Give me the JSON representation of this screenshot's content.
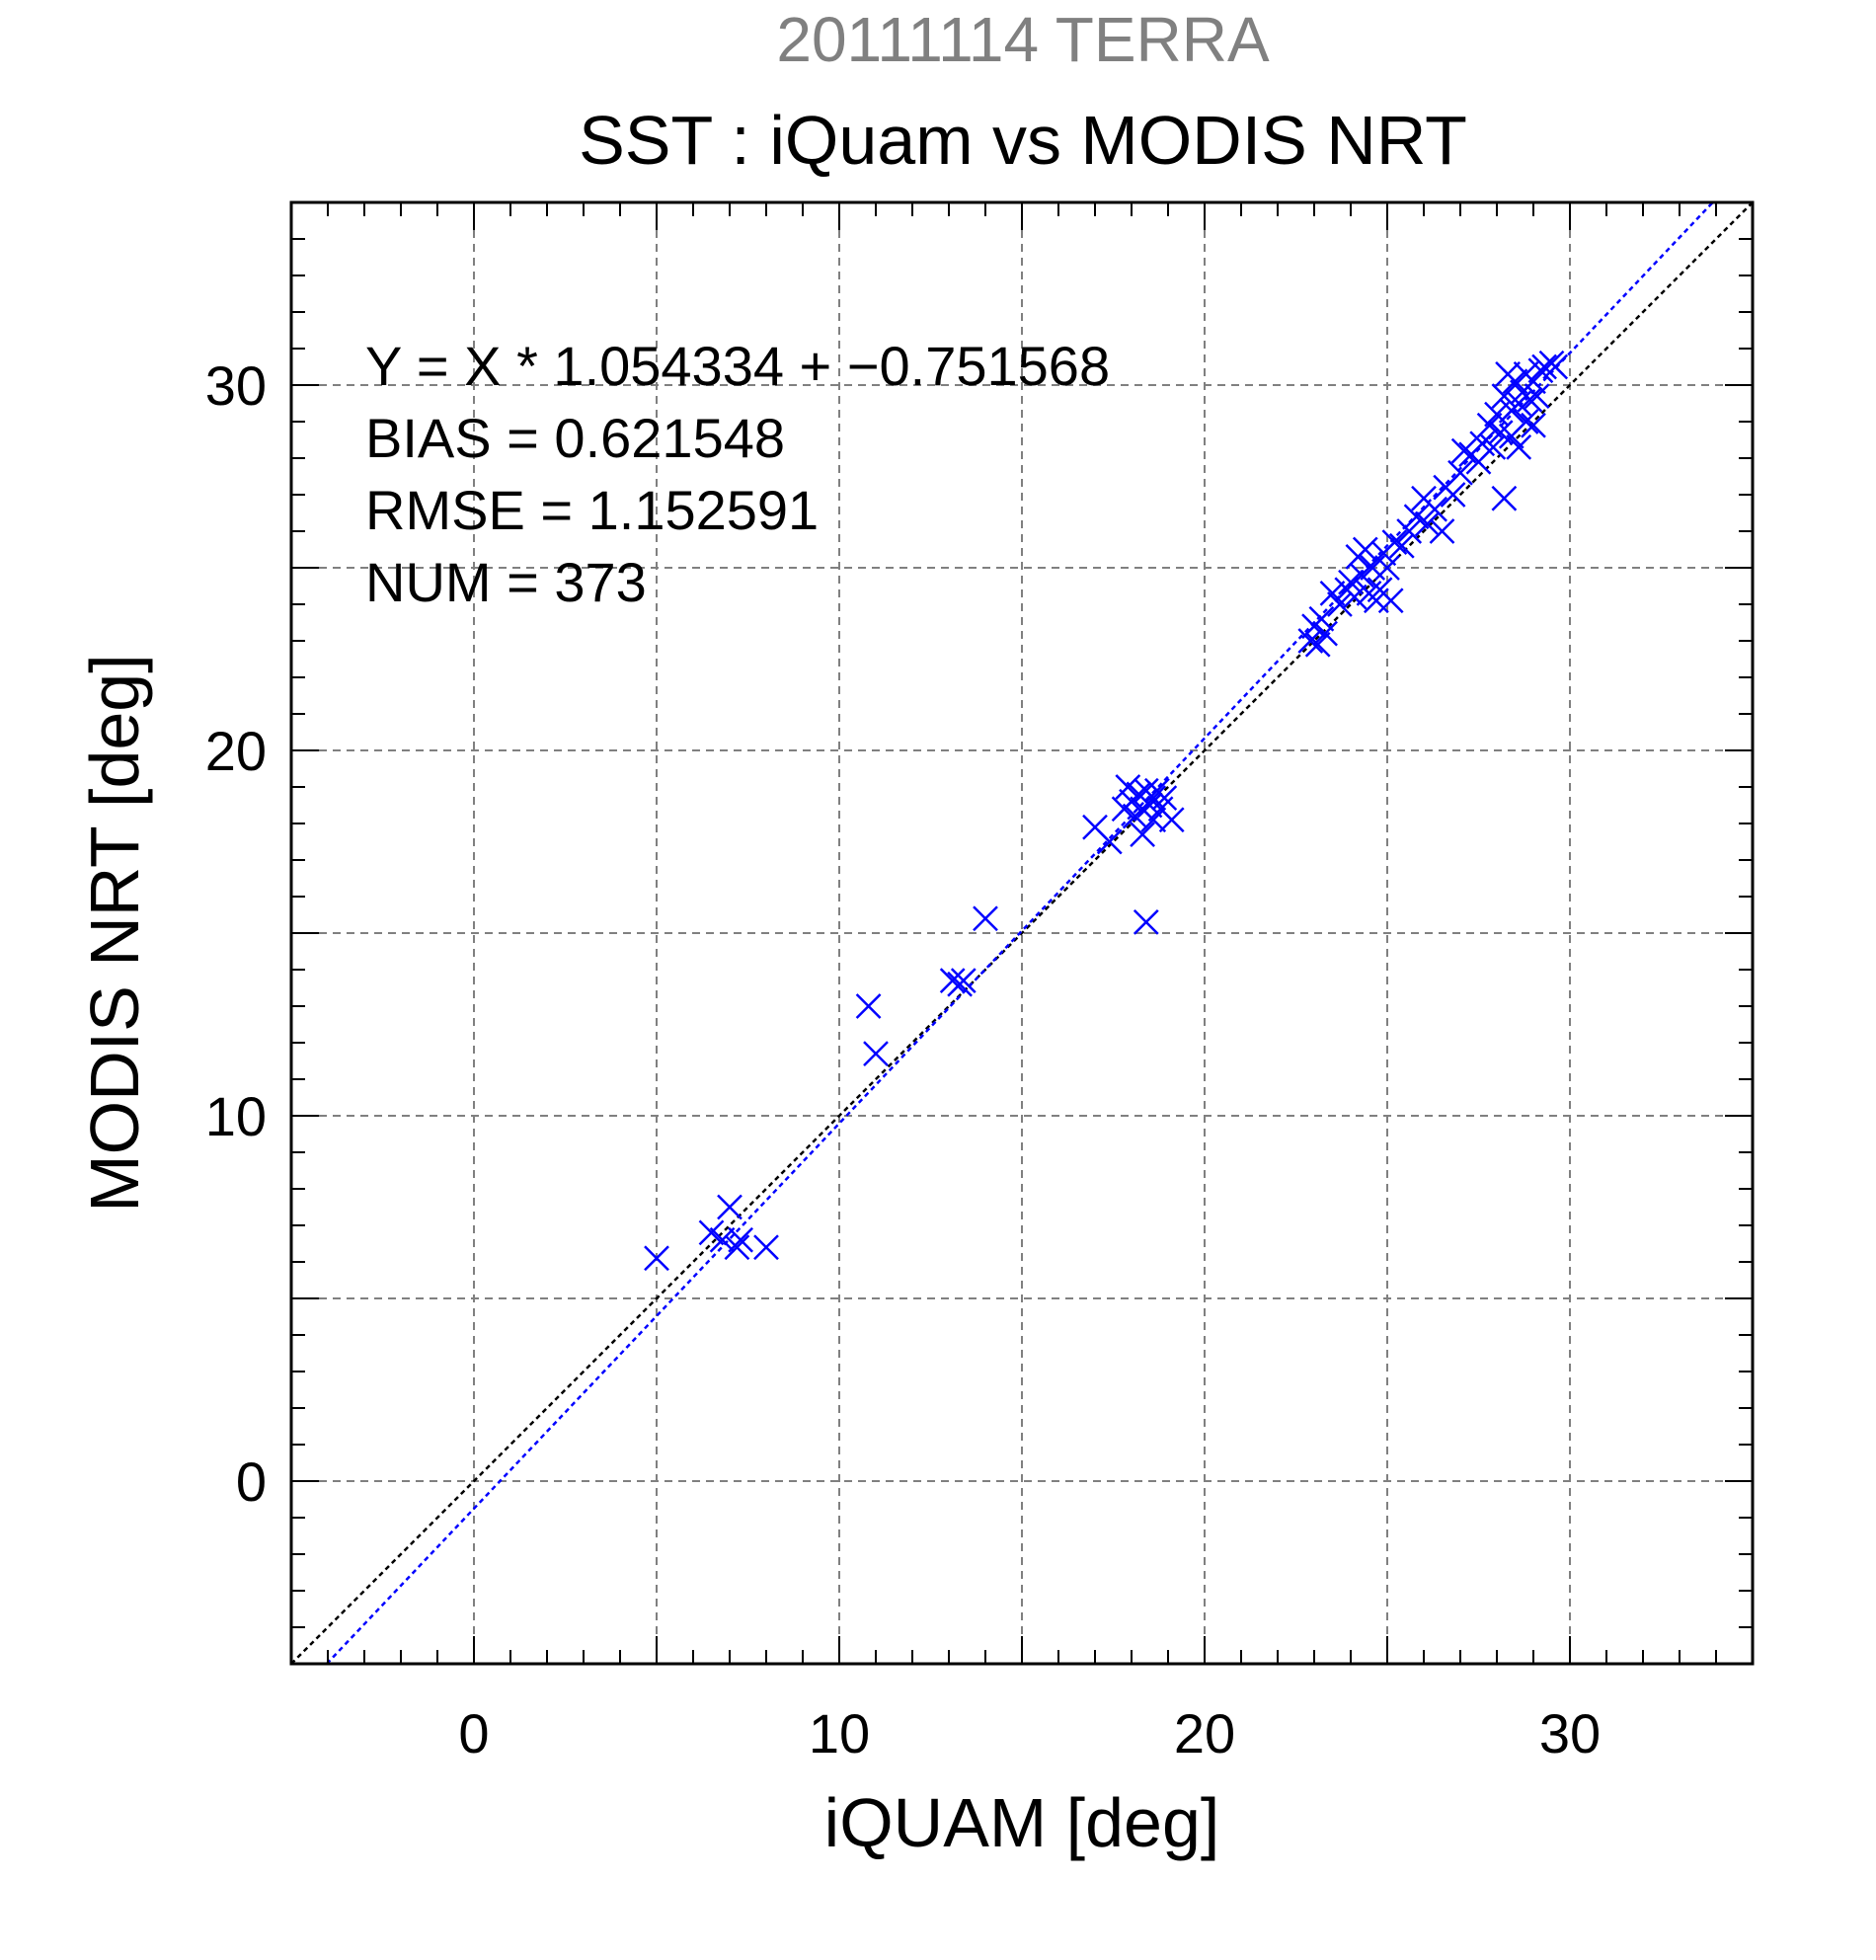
{
  "chart_data": {
    "type": "scatter",
    "title": "SST : iQuam vs MODIS NRT",
    "subtitle": "20111114 TERRA",
    "xlabel": "iQUAM [deg]",
    "ylabel": "MODIS NRT [deg]",
    "xlim": [
      -5,
      35
    ],
    "ylim": [
      -5,
      35
    ],
    "xticks": [
      0,
      10,
      20,
      30
    ],
    "yticks": [
      0,
      10,
      20,
      30
    ],
    "grid": true,
    "annotations": [
      "Y = X * 1.054334 + −0.751568",
      "BIAS = 0.621548",
      "RMSE = 1.152591",
      "NUM = 373"
    ],
    "lines": [
      {
        "slope": 1,
        "intercept": 0,
        "color": "#000000",
        "style": "dotted"
      },
      {
        "slope": 1.054334,
        "intercept": -0.751568,
        "color": "#0000ff",
        "style": "dotted"
      }
    ],
    "series": [
      {
        "marker": "x",
        "color": "#0000ff",
        "points": [
          [
            5.0,
            6.1
          ],
          [
            6.5,
            6.8
          ],
          [
            6.8,
            6.6
          ],
          [
            7.0,
            7.5
          ],
          [
            7.2,
            6.4
          ],
          [
            7.3,
            6.6
          ],
          [
            8.0,
            6.4
          ],
          [
            10.8,
            13.0
          ],
          [
            11.0,
            11.7
          ],
          [
            13.1,
            13.7
          ],
          [
            13.3,
            13.6
          ],
          [
            13.4,
            13.7
          ],
          [
            14.0,
            15.4
          ],
          [
            17.0,
            17.9
          ],
          [
            17.4,
            17.5
          ],
          [
            17.8,
            18.4
          ],
          [
            17.9,
            19.0
          ],
          [
            18.0,
            18.6
          ],
          [
            18.1,
            18.2
          ],
          [
            18.2,
            18.8
          ],
          [
            18.3,
            18.4
          ],
          [
            18.3,
            17.7
          ],
          [
            18.4,
            18.9
          ],
          [
            18.5,
            18.5
          ],
          [
            18.6,
            18.1
          ],
          [
            18.6,
            18.7
          ],
          [
            18.7,
            18.9
          ],
          [
            18.8,
            18.4
          ],
          [
            18.9,
            18.7
          ],
          [
            19.1,
            18.1
          ],
          [
            18.4,
            15.3
          ],
          [
            22.9,
            23.0
          ],
          [
            23.0,
            23.4
          ],
          [
            23.1,
            22.9
          ],
          [
            23.2,
            23.6
          ],
          [
            23.3,
            23.2
          ],
          [
            23.5,
            24.3
          ],
          [
            23.7,
            24.0
          ],
          [
            23.9,
            24.4
          ],
          [
            24.0,
            24.6
          ],
          [
            24.1,
            24.2
          ],
          [
            24.2,
            25.3
          ],
          [
            24.3,
            24.8
          ],
          [
            24.4,
            25.5
          ],
          [
            24.5,
            24.3
          ],
          [
            24.6,
            25.0
          ],
          [
            24.7,
            24.1
          ],
          [
            24.8,
            24.4
          ],
          [
            24.9,
            25.4
          ],
          [
            25.0,
            25.0
          ],
          [
            25.1,
            24.1
          ],
          [
            25.2,
            25.7
          ],
          [
            25.4,
            25.6
          ],
          [
            25.6,
            26.0
          ],
          [
            25.8,
            26.4
          ],
          [
            26.0,
            26.9
          ],
          [
            26.1,
            26.2
          ],
          [
            26.3,
            26.6
          ],
          [
            26.5,
            26.0
          ],
          [
            26.6,
            27.2
          ],
          [
            26.8,
            27.0
          ],
          [
            27.0,
            27.6
          ],
          [
            27.1,
            28.2
          ],
          [
            27.3,
            28.1
          ],
          [
            27.5,
            27.9
          ],
          [
            27.6,
            28.4
          ],
          [
            27.8,
            28.9
          ],
          [
            27.9,
            28.3
          ],
          [
            28.0,
            29.2
          ],
          [
            28.1,
            28.7
          ],
          [
            28.2,
            29.7
          ],
          [
            28.2,
            26.9
          ],
          [
            28.3,
            30.3
          ],
          [
            28.4,
            29.3
          ],
          [
            28.4,
            28.6
          ],
          [
            28.5,
            30.1
          ],
          [
            28.6,
            29.5
          ],
          [
            28.6,
            28.3
          ],
          [
            28.7,
            29.8
          ],
          [
            28.8,
            30.3
          ],
          [
            28.8,
            29.0
          ],
          [
            28.9,
            29.6
          ],
          [
            29.0,
            30.1
          ],
          [
            29.0,
            28.9
          ],
          [
            29.1,
            29.7
          ],
          [
            29.2,
            30.4
          ],
          [
            29.3,
            30.5
          ],
          [
            29.5,
            30.6
          ],
          [
            29.6,
            30.5
          ]
        ]
      }
    ]
  }
}
